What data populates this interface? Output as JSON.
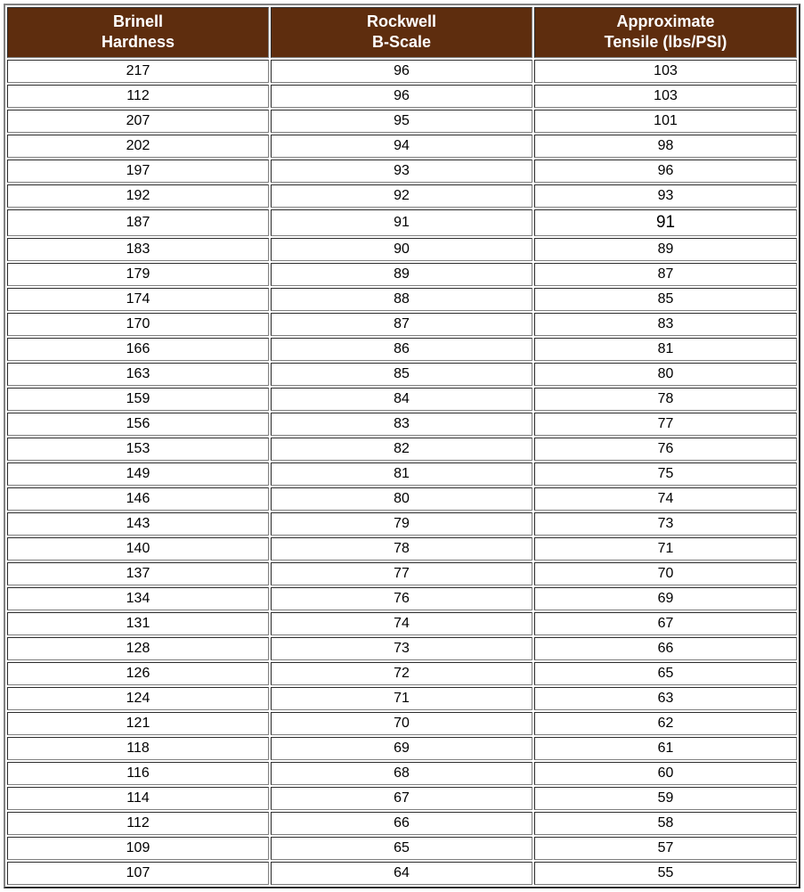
{
  "table": {
    "type": "table",
    "header_bg_color": "#5e2d0e",
    "header_text_color": "#ffffff",
    "cell_bg_color": "#ffffff",
    "cell_text_color": "#000000",
    "border_color": "#808080",
    "header_fontsize": 18,
    "cell_fontsize": 16,
    "larger_cell_fontsize": 19,
    "columns": [
      {
        "line1": "Brinell",
        "line2": "Hardness",
        "width_pct": 33.3
      },
      {
        "line1": "Rockwell",
        "line2": "B-Scale",
        "width_pct": 33.3
      },
      {
        "line1": "Approximate",
        "line2": "Tensile (lbs/PSI)",
        "width_pct": 33.4
      }
    ],
    "rows": [
      {
        "c1": "217",
        "c2": "96",
        "c3": "103",
        "c3_larger": false
      },
      {
        "c1": "112",
        "c2": "96",
        "c3": "103",
        "c3_larger": false
      },
      {
        "c1": "207",
        "c2": "95",
        "c3": "101",
        "c3_larger": false
      },
      {
        "c1": "202",
        "c2": "94",
        "c3": "98",
        "c3_larger": false
      },
      {
        "c1": "197",
        "c2": "93",
        "c3": "96",
        "c3_larger": false
      },
      {
        "c1": "192",
        "c2": "92",
        "c3": "93",
        "c3_larger": false
      },
      {
        "c1": "187",
        "c2": "91",
        "c3": "91",
        "c3_larger": true
      },
      {
        "c1": "183",
        "c2": "90",
        "c3": "89",
        "c3_larger": false
      },
      {
        "c1": "179",
        "c2": "89",
        "c3": "87",
        "c3_larger": false
      },
      {
        "c1": "174",
        "c2": "88",
        "c3": "85",
        "c3_larger": false
      },
      {
        "c1": "170",
        "c2": "87",
        "c3": "83",
        "c3_larger": false
      },
      {
        "c1": "166",
        "c2": "86",
        "c3": "81",
        "c3_larger": false
      },
      {
        "c1": "163",
        "c2": "85",
        "c3": "80",
        "c3_larger": false
      },
      {
        "c1": "159",
        "c2": "84",
        "c3": "78",
        "c3_larger": false
      },
      {
        "c1": "156",
        "c2": "83",
        "c3": "77",
        "c3_larger": false
      },
      {
        "c1": "153",
        "c2": "82",
        "c3": "76",
        "c3_larger": false
      },
      {
        "c1": "149",
        "c2": "81",
        "c3": "75",
        "c3_larger": false
      },
      {
        "c1": "146",
        "c2": "80",
        "c3": "74",
        "c3_larger": false
      },
      {
        "c1": "143",
        "c2": "79",
        "c3": "73",
        "c3_larger": false
      },
      {
        "c1": "140",
        "c2": "78",
        "c3": "71",
        "c3_larger": false
      },
      {
        "c1": "137",
        "c2": "77",
        "c3": "70",
        "c3_larger": false
      },
      {
        "c1": "134",
        "c2": "76",
        "c3": "69",
        "c3_larger": false
      },
      {
        "c1": "131",
        "c2": "74",
        "c3": "67",
        "c3_larger": false
      },
      {
        "c1": "128",
        "c2": "73",
        "c3": "66",
        "c3_larger": false
      },
      {
        "c1": "126",
        "c2": "72",
        "c3": "65",
        "c3_larger": false
      },
      {
        "c1": "124",
        "c2": "71",
        "c3": "63",
        "c3_larger": false
      },
      {
        "c1": "121",
        "c2": "70",
        "c3": "62",
        "c3_larger": false
      },
      {
        "c1": "118",
        "c2": "69",
        "c3": "61",
        "c3_larger": false
      },
      {
        "c1": "116",
        "c2": "68",
        "c3": "60",
        "c3_larger": false
      },
      {
        "c1": "114",
        "c2": "67",
        "c3": "59",
        "c3_larger": false
      },
      {
        "c1": "112",
        "c2": "66",
        "c3": "58",
        "c3_larger": false
      },
      {
        "c1": "109",
        "c2": "65",
        "c3": "57",
        "c3_larger": false
      },
      {
        "c1": "107",
        "c2": "64",
        "c3": "55",
        "c3_larger": false
      }
    ]
  }
}
